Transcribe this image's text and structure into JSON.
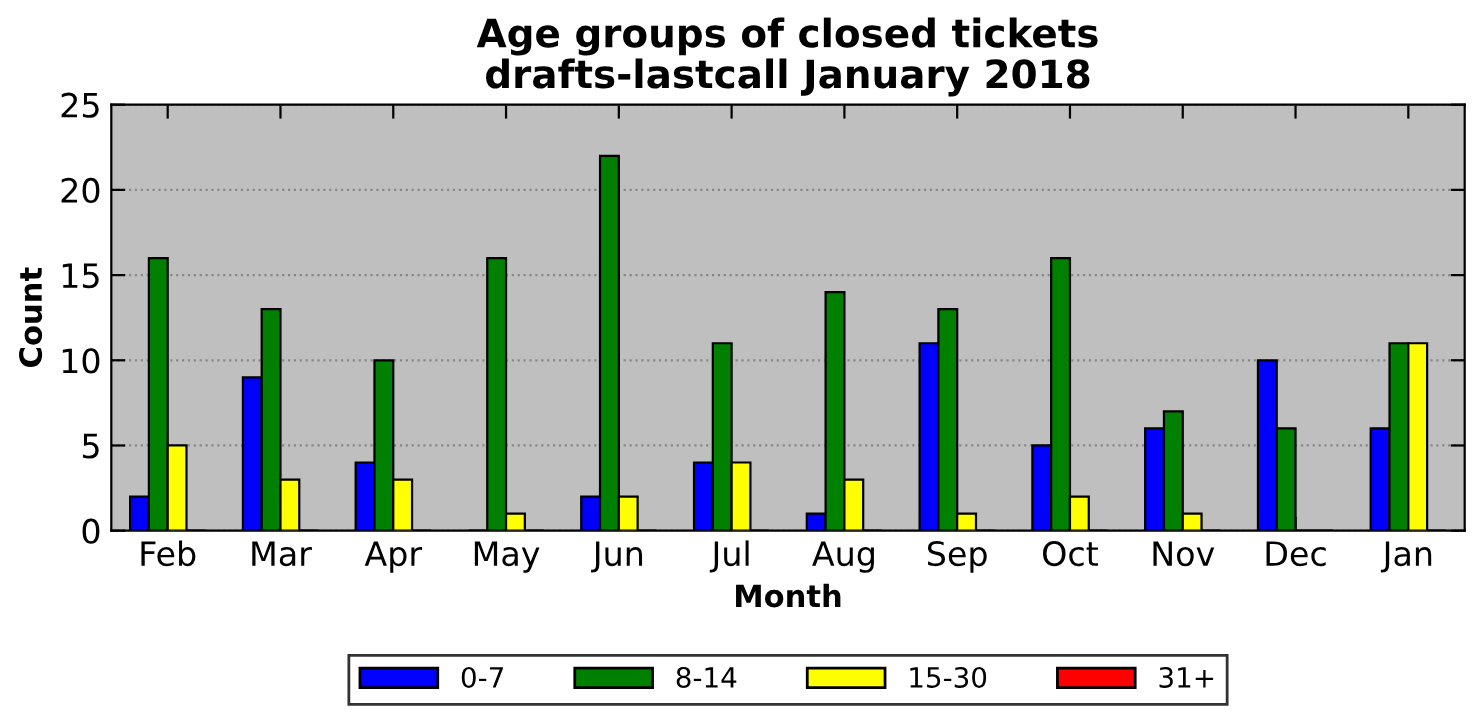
{
  "chart_data": {
    "type": "bar",
    "title": "Age groups of closed tickets\ndrafts-lastcall January 2018",
    "xlabel": "Month",
    "ylabel": "Count",
    "categories": [
      "Feb",
      "Mar",
      "Apr",
      "May",
      "Jun",
      "Jul",
      "Aug",
      "Sep",
      "Oct",
      "Nov",
      "Dec",
      "Jan"
    ],
    "series": [
      {
        "name": "0-7",
        "color": "#0000ff",
        "values": [
          2,
          9,
          4,
          0,
          2,
          4,
          1,
          11,
          5,
          6,
          10,
          6
        ]
      },
      {
        "name": "8-14",
        "color": "#008000",
        "values": [
          16,
          13,
          10,
          16,
          22,
          11,
          14,
          13,
          16,
          7,
          6,
          11
        ]
      },
      {
        "name": "15-30",
        "color": "#ffff00",
        "values": [
          5,
          3,
          3,
          1,
          2,
          4,
          3,
          1,
          2,
          1,
          0,
          11
        ]
      },
      {
        "name": "31+",
        "color": "#ff0000",
        "values": [
          0,
          0,
          0,
          0,
          0,
          0,
          0,
          0,
          0,
          0,
          0,
          0
        ]
      }
    ],
    "ylim": [
      0,
      25
    ],
    "yticks": [
      0,
      5,
      10,
      15,
      20,
      25
    ],
    "grid": "y",
    "legend": "bottom"
  }
}
